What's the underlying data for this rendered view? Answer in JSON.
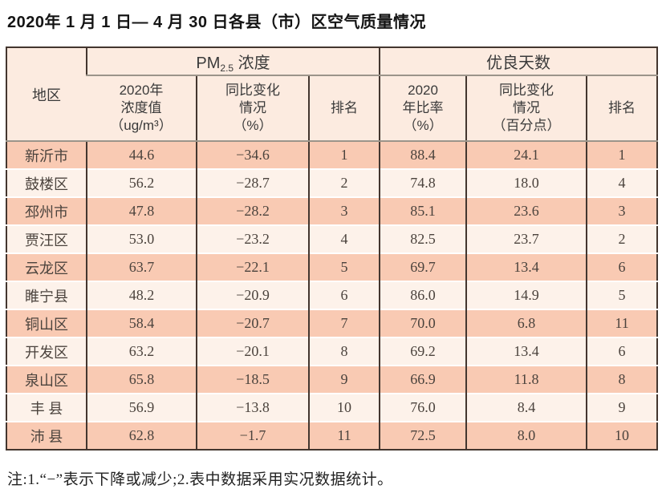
{
  "page": {
    "title": "2020年 1 月 1 日— 4 月 30 日各县（市）区空气质量情况",
    "footnote": "注:1.“−”表示下降或减少;2.表中数据采用实况数据统计。"
  },
  "table": {
    "region_header": "地区",
    "groups": [
      {
        "prefix": "PM",
        "sub": "2.5",
        "suffix": " 浓度"
      },
      {
        "label": "优良天数"
      }
    ],
    "subheaders": [
      "2020年\n浓度值\n（ug/m³）",
      "同比变化\n情况\n（%）",
      "排名",
      "2020\n年比率\n（%）",
      "同比变化\n情况\n（百分点）",
      "排名"
    ],
    "rows": [
      {
        "region": "新沂市",
        "pm_value": "44.6",
        "pm_change": "−34.6",
        "pm_rank": "1",
        "ratio": "88.4",
        "ratio_change": "24.1",
        "ratio_rank": "1"
      },
      {
        "region": "鼓楼区",
        "pm_value": "56.2",
        "pm_change": "−28.7",
        "pm_rank": "2",
        "ratio": "74.8",
        "ratio_change": "18.0",
        "ratio_rank": "4"
      },
      {
        "region": "邳州市",
        "pm_value": "47.8",
        "pm_change": "−28.2",
        "pm_rank": "3",
        "ratio": "85.1",
        "ratio_change": "23.6",
        "ratio_rank": "3"
      },
      {
        "region": "贾汪区",
        "pm_value": "53.0",
        "pm_change": "−23.2",
        "pm_rank": "4",
        "ratio": "82.5",
        "ratio_change": "23.7",
        "ratio_rank": "2"
      },
      {
        "region": "云龙区",
        "pm_value": "63.7",
        "pm_change": "−22.1",
        "pm_rank": "5",
        "ratio": "69.7",
        "ratio_change": "13.4",
        "ratio_rank": "6"
      },
      {
        "region": "睢宁县",
        "pm_value": "48.2",
        "pm_change": "−20.9",
        "pm_rank": "6",
        "ratio": "86.0",
        "ratio_change": "14.9",
        "ratio_rank": "5"
      },
      {
        "region": "铜山区",
        "pm_value": "58.4",
        "pm_change": "−20.7",
        "pm_rank": "7",
        "ratio": "70.0",
        "ratio_change": "6.8",
        "ratio_rank": "11"
      },
      {
        "region": "开发区",
        "pm_value": "63.2",
        "pm_change": "−20.1",
        "pm_rank": "8",
        "ratio": "69.2",
        "ratio_change": "13.4",
        "ratio_rank": "6"
      },
      {
        "region": "泉山区",
        "pm_value": "65.8",
        "pm_change": "−18.5",
        "pm_rank": "9",
        "ratio": "66.9",
        "ratio_change": "11.8",
        "ratio_rank": "8"
      },
      {
        "region": "丰 县",
        "pm_value": "56.9",
        "pm_change": "−13.8",
        "pm_rank": "10",
        "ratio": "76.0",
        "ratio_change": "8.4",
        "ratio_rank": "9"
      },
      {
        "region": "沛 县",
        "pm_value": "62.8",
        "pm_change": "−1.7",
        "pm_rank": "11",
        "ratio": "72.5",
        "ratio_change": "8.0",
        "ratio_rank": "10"
      }
    ]
  },
  "colors": {
    "row_odd": "#f9cab3",
    "row_even": "#fdf2ea",
    "header_bg": "#fcebe0",
    "border_dark": "#43362f",
    "border_gray": "#9b948a"
  }
}
